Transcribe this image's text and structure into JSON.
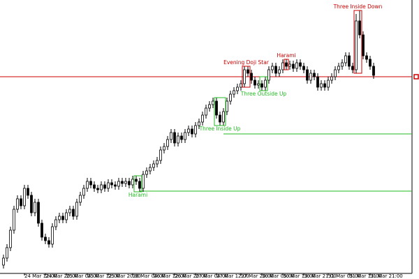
{
  "chart_data": {
    "type": "candlestick",
    "up_color": "#ffffff",
    "down_color": "#000000",
    "outline_color": "#000000",
    "ylim": [
      10,
      400
    ],
    "categories": [
      null,
      null,
      null,
      null,
      null,
      null,
      "24 Mar 12:00",
      null,
      null,
      null,
      null,
      null,
      "24 Mar 20:00",
      null,
      null,
      null,
      null,
      null,
      "25 Mar 04:00",
      null,
      null,
      null,
      null,
      null,
      "25 Mar 12:00",
      null,
      null,
      null,
      null,
      null,
      "25 Mar 20:00",
      null,
      null,
      null,
      null,
      null,
      null,
      "26 Mar 04:00",
      null,
      null,
      null,
      null,
      null,
      "26 Mar 12:00",
      null,
      null,
      null,
      null,
      null,
      "26 Mar 20:00",
      null,
      null,
      null,
      null,
      null,
      "27 Mar 04:00",
      null,
      null,
      null,
      null,
      null,
      "27 Mar 12:00",
      null,
      null,
      null,
      null,
      null,
      null,
      "27 Mar 20:00",
      null,
      null,
      null,
      null,
      null,
      "30 Mar 05:00",
      null,
      null,
      null,
      null,
      null,
      "30 Mar 13:00",
      null,
      null,
      null,
      null,
      null,
      "30 Mar 21:00",
      null,
      null,
      null,
      null,
      null,
      null,
      "31 Mar 05:00",
      null,
      null,
      null,
      null,
      null,
      "31 Mar 13:00",
      null,
      null,
      null,
      null,
      null,
      "31 Mar 21:00",
      null
    ],
    "open": [
      20,
      30,
      45,
      70,
      100,
      115,
      105,
      130,
      120,
      95,
      110,
      80,
      60,
      55,
      50,
      75,
      85,
      90,
      85,
      95,
      100,
      90,
      110,
      120,
      130,
      140,
      135,
      130,
      128,
      135,
      130,
      138,
      135,
      133,
      140,
      137,
      140,
      135,
      143,
      140,
      130,
      150,
      155,
      160,
      165,
      170,
      185,
      190,
      200,
      210,
      195,
      205,
      200,
      210,
      215,
      208,
      220,
      225,
      235,
      245,
      250,
      255,
      235,
      225,
      240,
      255,
      265,
      270,
      275,
      280,
      300,
      295,
      285,
      278,
      280,
      275,
      285,
      300,
      305,
      295,
      300,
      310,
      305,
      308,
      302,
      310,
      305,
      300,
      285,
      295,
      290,
      275,
      280,
      275,
      285,
      290,
      300,
      305,
      310,
      320,
      305,
      300,
      370,
      350,
      320,
      315,
      305
    ],
    "high": [
      35,
      50,
      75,
      105,
      120,
      120,
      135,
      135,
      125,
      115,
      115,
      85,
      65,
      60,
      80,
      90,
      95,
      95,
      100,
      105,
      105,
      115,
      125,
      135,
      145,
      145,
      140,
      135,
      140,
      140,
      143,
      143,
      140,
      145,
      145,
      145,
      145,
      148,
      148,
      145,
      155,
      160,
      165,
      170,
      175,
      190,
      195,
      205,
      215,
      215,
      210,
      210,
      215,
      220,
      220,
      225,
      230,
      240,
      250,
      255,
      260,
      260,
      240,
      245,
      260,
      270,
      275,
      280,
      285,
      305,
      305,
      300,
      290,
      285,
      285,
      290,
      305,
      310,
      310,
      305,
      315,
      315,
      313,
      313,
      315,
      315,
      310,
      305,
      300,
      300,
      295,
      285,
      285,
      290,
      295,
      305,
      310,
      315,
      325,
      325,
      310,
      380,
      385,
      355,
      325,
      320,
      310
    ],
    "low": [
      15,
      25,
      40,
      65,
      95,
      100,
      100,
      115,
      90,
      90,
      75,
      55,
      50,
      45,
      45,
      70,
      80,
      80,
      80,
      90,
      85,
      85,
      105,
      115,
      125,
      130,
      125,
      123,
      123,
      125,
      125,
      130,
      128,
      128,
      132,
      132,
      130,
      130,
      135,
      125,
      125,
      145,
      150,
      155,
      160,
      165,
      180,
      185,
      195,
      190,
      190,
      195,
      195,
      205,
      203,
      203,
      215,
      220,
      230,
      240,
      245,
      230,
      220,
      220,
      235,
      250,
      260,
      265,
      270,
      275,
      290,
      280,
      273,
      273,
      270,
      270,
      280,
      295,
      290,
      290,
      295,
      300,
      300,
      297,
      297,
      300,
      295,
      280,
      280,
      285,
      270,
      270,
      270,
      270,
      280,
      285,
      295,
      300,
      305,
      300,
      295,
      295,
      345,
      315,
      310,
      300,
      287
    ],
    "close": [
      30,
      45,
      70,
      100,
      115,
      105,
      130,
      120,
      95,
      110,
      80,
      60,
      55,
      50,
      75,
      85,
      90,
      85,
      95,
      100,
      90,
      110,
      120,
      130,
      140,
      135,
      130,
      128,
      135,
      130,
      138,
      135,
      133,
      140,
      137,
      140,
      135,
      143,
      140,
      130,
      150,
      155,
      160,
      165,
      170,
      185,
      190,
      200,
      210,
      195,
      205,
      200,
      210,
      215,
      208,
      220,
      225,
      235,
      245,
      250,
      255,
      235,
      225,
      240,
      255,
      265,
      270,
      275,
      280,
      300,
      295,
      285,
      278,
      280,
      275,
      285,
      300,
      305,
      295,
      300,
      310,
      305,
      308,
      302,
      310,
      305,
      300,
      285,
      295,
      290,
      275,
      280,
      275,
      285,
      290,
      300,
      305,
      310,
      320,
      305,
      300,
      370,
      350,
      320,
      315,
      305,
      292
    ],
    "levels": [
      {
        "value": 290,
        "color": "#cc0000"
      },
      {
        "value": 208,
        "color": "#22bb22",
        "start": 63
      },
      {
        "value": 126,
        "color": "#22bb22",
        "start": 39
      }
    ],
    "patterns": [
      {
        "label": "Harami",
        "color": "#22bb22",
        "start": 38,
        "end": 39,
        "side": "below"
      },
      {
        "label": "Three Inside Up",
        "color": "#22bb22",
        "start": 61,
        "end": 63,
        "side": "below"
      },
      {
        "label": "Three Outside Up",
        "color": "#22bb22",
        "start": 74,
        "end": 75,
        "side": "below"
      },
      {
        "label": "Evening Doji Star",
        "color": "#cc0000",
        "start": 69,
        "end": 70,
        "side": "above"
      },
      {
        "label": "Harami",
        "color": "#cc0000",
        "start": 81,
        "end": 81,
        "side": "above"
      },
      {
        "label": "Three Inside Down",
        "color": "#cc0000",
        "start": 101,
        "end": 102,
        "side": "above"
      }
    ]
  }
}
